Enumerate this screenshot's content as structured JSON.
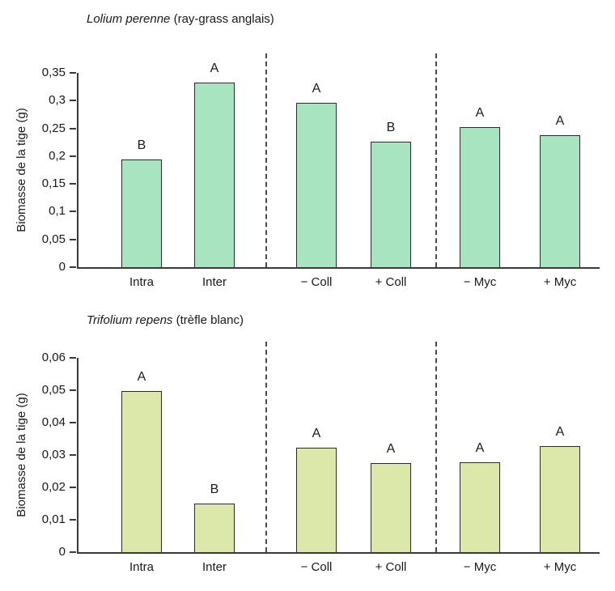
{
  "style": {
    "background": "#ffffff",
    "text_color": "#1a1a1a",
    "axis_color": "#3a3a3a",
    "separator_color": "#4a4a4a",
    "bar_border_color": "#2b2b2b"
  },
  "chart_data": [
    {
      "type": "bar",
      "title_species": "Lolium perenne",
      "title_common": " (ray-grass anglais)",
      "ylabel": "Biomasse de la tige (g)",
      "ylim": [
        0,
        0.35
      ],
      "ytick_values": [
        0,
        0.05,
        0.1,
        0.15,
        0.2,
        0.25,
        0.3,
        0.35
      ],
      "ytick_labels": [
        "0",
        "0,05",
        "0,1",
        "0,15",
        "0,2",
        "0,25",
        "0,3",
        "0,35"
      ],
      "categories": [
        "Intra",
        "Inter",
        "− Coll",
        "+ Coll",
        "− Myc",
        "+ Myc"
      ],
      "values": [
        0.194,
        0.332,
        0.296,
        0.226,
        0.252,
        0.238
      ],
      "significance_letters": [
        "B",
        "A",
        "A",
        "B",
        "A",
        "A"
      ],
      "groups": [
        [
          "Intra",
          "Inter"
        ],
        [
          "− Coll",
          "+ Coll"
        ],
        [
          "− Myc",
          "+ Myc"
        ]
      ],
      "bar_color": "#a9e4c1",
      "grid": false,
      "legend": null
    },
    {
      "type": "bar",
      "title_species": "Trifolium repens",
      "title_common": " (trèfle blanc)",
      "ylabel": "Biomasse de la tige (g)",
      "ylim": [
        0,
        0.06
      ],
      "ytick_values": [
        0,
        0.01,
        0.02,
        0.03,
        0.04,
        0.05,
        0.06
      ],
      "ytick_labels": [
        "0",
        "0,01",
        "0,02",
        "0,03",
        "0,04",
        "0,05",
        "0,06"
      ],
      "categories": [
        "Intra",
        "Inter",
        "− Coll",
        "+ Coll",
        "− Myc",
        "+ Myc"
      ],
      "values": [
        0.0497,
        0.015,
        0.0322,
        0.0275,
        0.0278,
        0.0327
      ],
      "significance_letters": [
        "A",
        "B",
        "A",
        "A",
        "A",
        "A"
      ],
      "groups": [
        [
          "Intra",
          "Inter"
        ],
        [
          "− Coll",
          "+ Coll"
        ],
        [
          "− Myc",
          "+ Myc"
        ]
      ],
      "bar_color": "#dce8a9",
      "grid": false,
      "legend": null
    }
  ]
}
